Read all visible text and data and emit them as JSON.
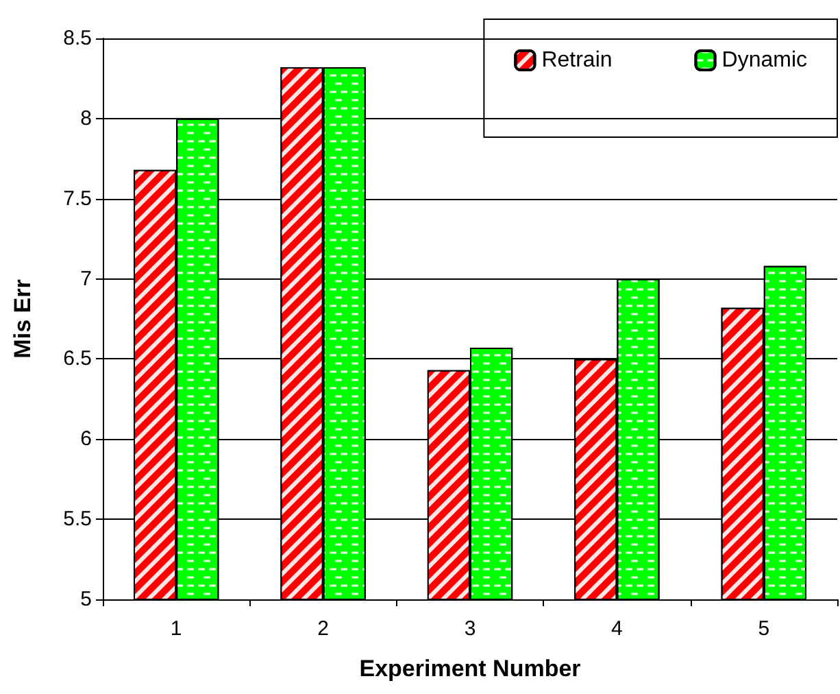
{
  "chart_data": {
    "type": "bar",
    "xlabel": "Experiment Number",
    "ylabel": "Mis Err",
    "categories": [
      "1",
      "2",
      "3",
      "4",
      "5"
    ],
    "series": [
      {
        "name": "Retrain",
        "color": "#ff0000",
        "values": [
          7.68,
          8.32,
          6.43,
          6.5,
          6.82
        ]
      },
      {
        "name": "Dynamic",
        "color": "#00ff00",
        "values": [
          8.0,
          8.32,
          6.57,
          7.0,
          7.08
        ]
      }
    ],
    "ylim": [
      5,
      8.5
    ],
    "yticks": [
      5,
      5.5,
      6,
      6.5,
      7,
      7.5,
      8,
      8.5
    ],
    "grid": "y",
    "legend": "top right"
  }
}
